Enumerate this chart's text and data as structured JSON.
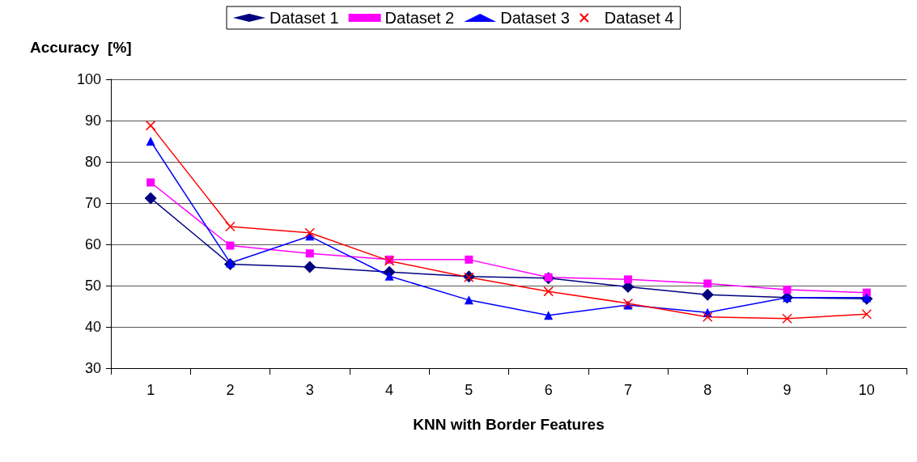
{
  "chart_data": {
    "type": "line",
    "xlabel": "KNN with Border Features",
    "ylabel": "Accuracy  [%]",
    "categories": [
      "1",
      "2",
      "3",
      "4",
      "5",
      "6",
      "7",
      "8",
      "9",
      "10"
    ],
    "series": [
      {
        "name": "Dataset 1",
        "color": "#000080",
        "marker": "diamond",
        "values": [
          71.2,
          55.2,
          54.5,
          53.3,
          52.2,
          51.8,
          49.7,
          47.8,
          47.1,
          46.8
        ]
      },
      {
        "name": "Dataset 2",
        "color": "#ff00ff",
        "marker": "square",
        "values": [
          75,
          59.7,
          57.8,
          56.3,
          56.3,
          52,
          51.5,
          50.5,
          49,
          48.3
        ]
      },
      {
        "name": "Dataset 3",
        "color": "#0000ff",
        "marker": "triangle",
        "values": [
          85,
          55.5,
          62,
          52.3,
          46.5,
          42.8,
          45.3,
          43.5,
          47.1,
          47.1
        ]
      },
      {
        "name": "Dataset 4",
        "color": "#ff0000",
        "marker": "cross",
        "values": [
          88.8,
          64.3,
          62.8,
          56,
          52,
          48.6,
          45.7,
          42.4,
          42,
          43.1
        ]
      }
    ],
    "ylim": [
      30,
      100
    ],
    "yticks": [
      30,
      40,
      50,
      60,
      70,
      80,
      90,
      100
    ],
    "grid": "y",
    "legend": "top",
    "line_style": "solid"
  }
}
